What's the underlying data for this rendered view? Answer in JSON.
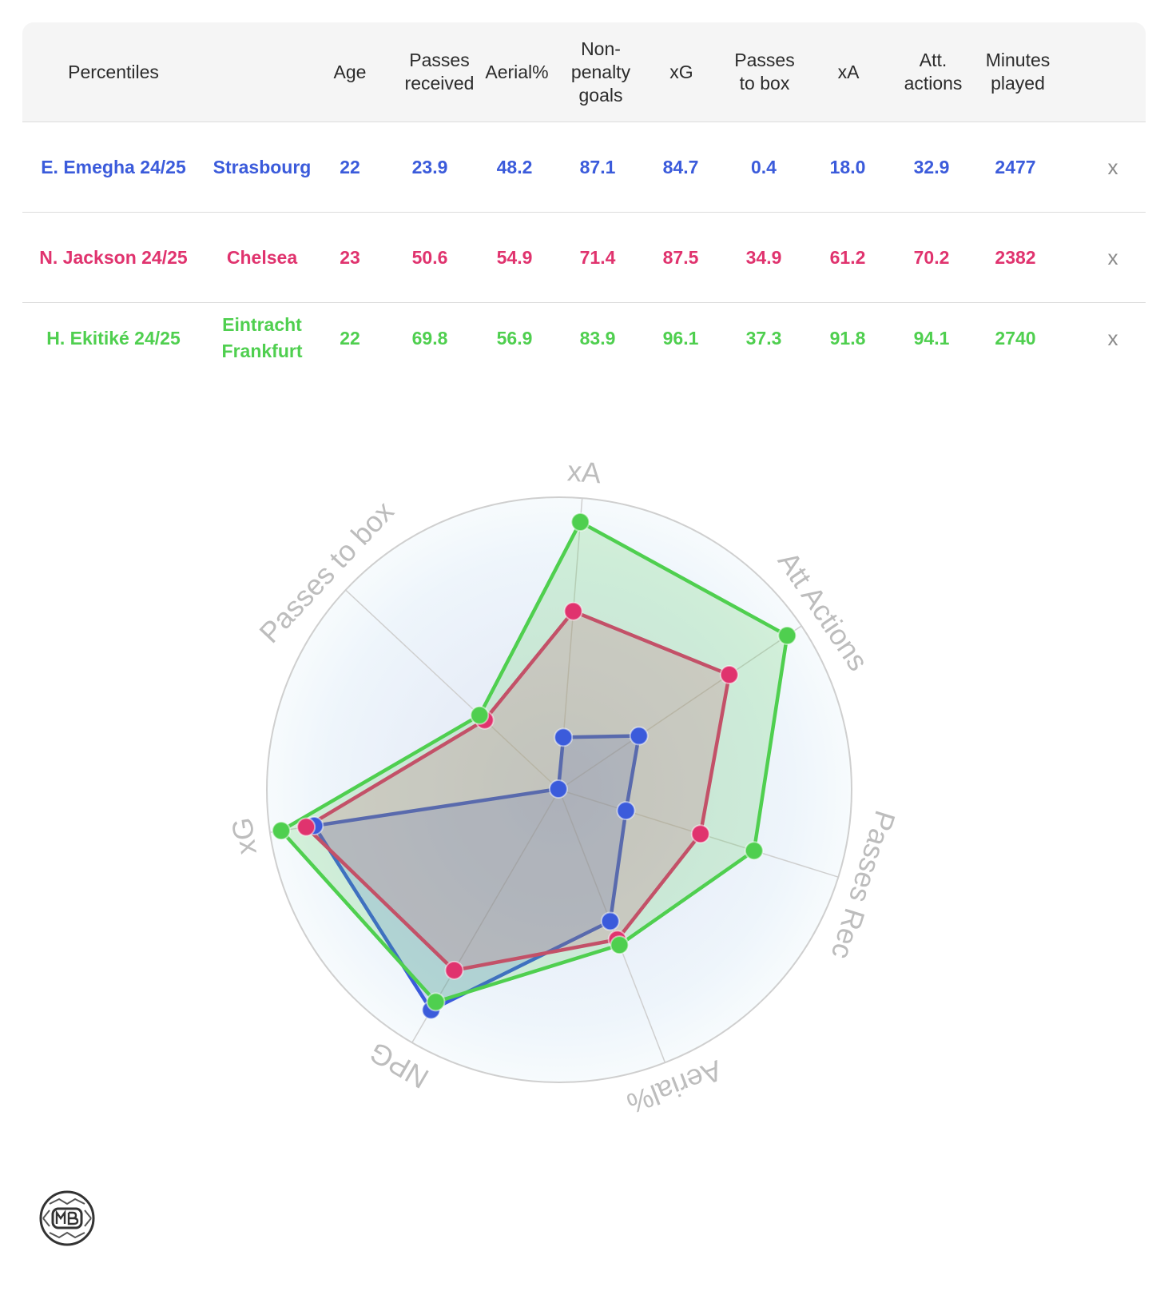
{
  "table": {
    "headers": {
      "percentiles": "Percentiles",
      "age": "Age",
      "passes_received": "Passes received",
      "aerial": "Aerial%",
      "npg": "Non-penalty goals",
      "xg": "xG",
      "passes_to_box": "Passes to box",
      "xa": "xA",
      "att_actions": "Att. actions",
      "minutes": "Minutes played"
    },
    "remove_label": "x",
    "rows": [
      {
        "player": "E. Emegha 24/25",
        "team": "Strasbourg",
        "age": "22",
        "passes_received": "23.9",
        "aerial": "48.2",
        "npg": "87.1",
        "xg": "84.7",
        "passes_to_box": "0.4",
        "xa": "18.0",
        "att_actions": "32.9",
        "minutes": "2477",
        "color": "#3b5bdb"
      },
      {
        "player": "N. Jackson 24/25",
        "team": "Chelsea",
        "age": "23",
        "passes_received": "50.6",
        "aerial": "54.9",
        "npg": "71.4",
        "xg": "87.5",
        "passes_to_box": "34.9",
        "xa": "61.2",
        "att_actions": "70.2",
        "minutes": "2382",
        "color": "#e0336e"
      },
      {
        "player": "H. Ekitiké 24/25",
        "team": "Eintracht Frankfurt",
        "age": "22",
        "passes_received": "69.8",
        "aerial": "56.9",
        "npg": "83.9",
        "xg": "96.1",
        "passes_to_box": "37.3",
        "xa": "91.8",
        "att_actions": "94.1",
        "minutes": "2740",
        "color": "#4fcf4f"
      }
    ]
  },
  "chart_data": {
    "type": "radar",
    "axes": [
      "xA",
      "Att Actions",
      "Passes Rec",
      "Aerial%",
      "NPG",
      "xG",
      "Passes to box"
    ],
    "range": [
      0,
      100
    ],
    "series": [
      {
        "name": "E. Emegha 24/25",
        "color": "#3b5bdb",
        "values": [
          18.0,
          32.9,
          23.9,
          48.2,
          87.1,
          84.7,
          0.4
        ]
      },
      {
        "name": "N. Jackson 24/25",
        "color": "#e0336e",
        "values": [
          61.2,
          70.2,
          50.6,
          54.9,
          71.4,
          87.5,
          34.9
        ]
      },
      {
        "name": "H. Ekitiké 24/25",
        "color": "#4fcf4f",
        "values": [
          91.8,
          94.1,
          69.8,
          56.9,
          83.9,
          96.1,
          37.3
        ]
      }
    ]
  }
}
